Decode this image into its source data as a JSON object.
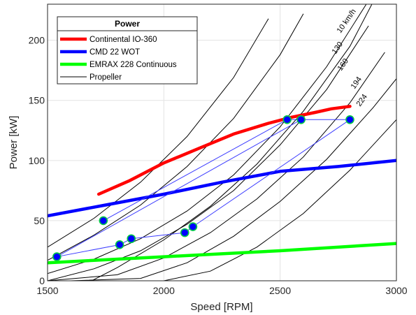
{
  "chart_data": {
    "type": "line",
    "xlabel": "Speed   [RPM]",
    "ylabel": "Power [kW]",
    "xlim": [
      1500,
      3000
    ],
    "ylim": [
      0,
      230
    ],
    "xticks": [
      1500,
      2000,
      2500,
      3000
    ],
    "yticks": [
      0,
      50,
      100,
      150,
      200
    ],
    "grid": true,
    "legend": {
      "title": "Power",
      "position": "top-left"
    },
    "series": [
      {
        "name": "Continental IO-360",
        "color": "#ff0000",
        "points": [
          [
            1720,
            72
          ],
          [
            1850,
            83
          ],
          [
            2000,
            98
          ],
          [
            2150,
            110
          ],
          [
            2300,
            122
          ],
          [
            2450,
            131
          ],
          [
            2550,
            136
          ],
          [
            2650,
            140
          ],
          [
            2720,
            143
          ],
          [
            2800,
            145
          ]
        ]
      },
      {
        "name": "CMD 22 WOT",
        "color": "#0000ff",
        "points": [
          [
            1500,
            54
          ],
          [
            1750,
            63
          ],
          [
            2000,
            72
          ],
          [
            2250,
            82
          ],
          [
            2500,
            91
          ],
          [
            2750,
            95
          ],
          [
            3000,
            100
          ]
        ]
      },
      {
        "name": "EMRAX 228 Continuous",
        "color": "#00ff00",
        "points": [
          [
            1500,
            15
          ],
          [
            2000,
            20
          ],
          [
            2500,
            25
          ],
          [
            3000,
            31
          ]
        ]
      }
    ],
    "propeller_label": "Propeller",
    "propeller_curves": [
      {
        "label": "",
        "points": [
          [
            1690,
            0
          ],
          [
            1800,
            11
          ],
          [
            2000,
            34
          ],
          [
            2200,
            62
          ],
          [
            2400,
            97
          ],
          [
            2600,
            141
          ],
          [
            2800,
            195
          ],
          [
            2900,
            232
          ]
        ]
      },
      {
        "label": "",
        "points": [
          [
            1500,
            17
          ],
          [
            1700,
            38
          ],
          [
            1900,
            63
          ],
          [
            2100,
            95
          ],
          [
            2300,
            135
          ],
          [
            2500,
            188
          ],
          [
            2600,
            222
          ]
        ]
      },
      {
        "label": "",
        "points": [
          [
            1500,
            28
          ],
          [
            1700,
            52
          ],
          [
            1900,
            82
          ],
          [
            2100,
            120
          ],
          [
            2300,
            169
          ],
          [
            2450,
            218
          ]
        ]
      },
      {
        "label": "10 km/h",
        "points": [
          [
            1500,
            6
          ],
          [
            1700,
            18
          ],
          [
            1900,
            35
          ],
          [
            2100,
            58
          ],
          [
            2300,
            88
          ],
          [
            2500,
            128
          ],
          [
            2700,
            178
          ],
          [
            2900,
            239
          ]
        ]
      },
      {
        "label": "130",
        "points": [
          [
            1500,
            0
          ],
          [
            1700,
            10
          ],
          [
            1900,
            25
          ],
          [
            2100,
            47
          ],
          [
            2300,
            75
          ],
          [
            2500,
            113
          ],
          [
            2700,
            159
          ],
          [
            2880,
            212
          ]
        ]
      },
      {
        "label": "160",
        "points": [
          [
            1500,
            0
          ],
          [
            1800,
            5
          ],
          [
            2000,
            19
          ],
          [
            2200,
            40
          ],
          [
            2400,
            68
          ],
          [
            2600,
            103
          ],
          [
            2800,
            148
          ],
          [
            2950,
            190
          ]
        ]
      },
      {
        "label": "194",
        "points": [
          [
            1600,
            0
          ],
          [
            1900,
            2
          ],
          [
            2100,
            15
          ],
          [
            2300,
            37
          ],
          [
            2500,
            66
          ],
          [
            2700,
            101
          ],
          [
            2900,
            144
          ],
          [
            3000,
            168
          ]
        ]
      },
      {
        "label": "224",
        "points": [
          [
            1800,
            0
          ],
          [
            2000,
            0
          ],
          [
            2200,
            8
          ],
          [
            2400,
            28
          ],
          [
            2600,
            56
          ],
          [
            2800,
            92
          ],
          [
            3000,
            134
          ]
        ]
      }
    ],
    "operating_points": [
      [
        1540,
        20
      ],
      [
        1740,
        50
      ],
      [
        1810,
        30
      ],
      [
        1860,
        35
      ],
      [
        2090,
        40
      ],
      [
        2125,
        45
      ],
      [
        2530,
        134
      ],
      [
        2590,
        134
      ],
      [
        2800,
        134
      ]
    ],
    "operating_segments": [
      [
        [
          1540,
          20
        ],
        [
          1810,
          30
        ]
      ],
      [
        [
          1810,
          30
        ],
        [
          1860,
          35
        ]
      ],
      [
        [
          1860,
          35
        ],
        [
          2090,
          40
        ]
      ],
      [
        [
          2090,
          40
        ],
        [
          2125,
          45
        ]
      ],
      [
        [
          1740,
          50
        ],
        [
          2530,
          134
        ]
      ],
      [
        [
          2125,
          45
        ],
        [
          2800,
          134
        ]
      ],
      [
        [
          1540,
          20
        ],
        [
          2590,
          134
        ]
      ],
      [
        [
          2530,
          134
        ],
        [
          2590,
          134
        ]
      ],
      [
        [
          2590,
          134
        ],
        [
          2800,
          134
        ]
      ]
    ]
  }
}
